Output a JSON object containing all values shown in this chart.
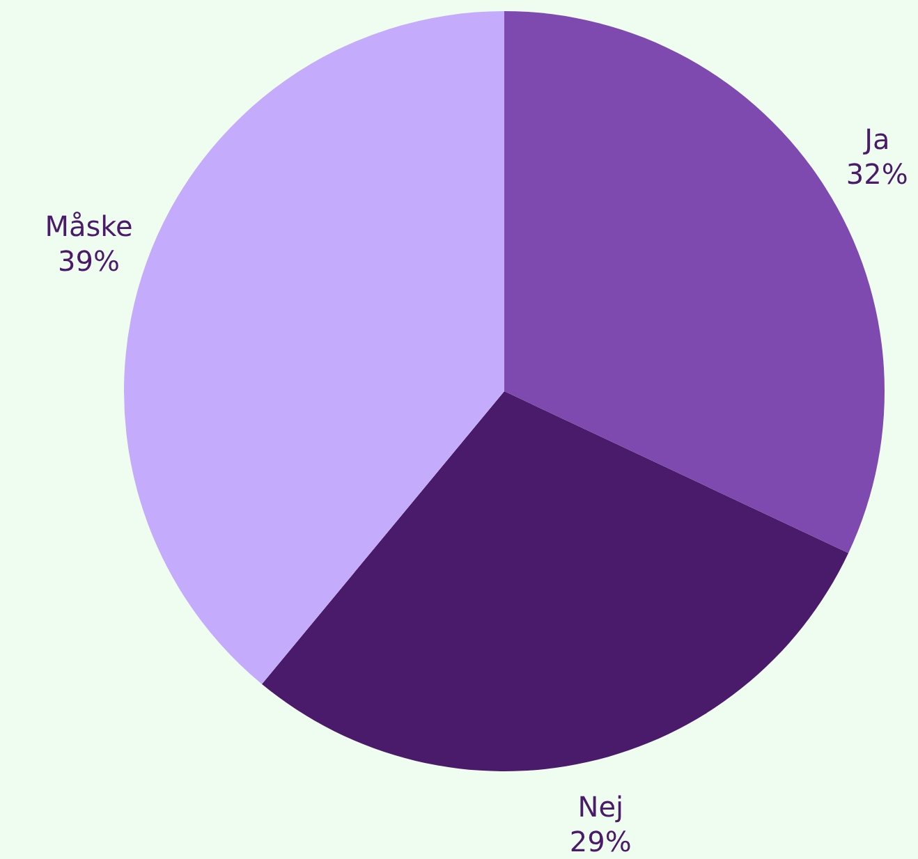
{
  "chart_data": {
    "type": "pie",
    "categories": [
      "Ja",
      "Nej",
      "Måske"
    ],
    "values": [
      32,
      29,
      39
    ],
    "colors": [
      "#7f4ab0",
      "#4a1a6b",
      "#c4abfc"
    ],
    "value_labels": [
      "32%",
      "29%",
      "39%"
    ]
  }
}
